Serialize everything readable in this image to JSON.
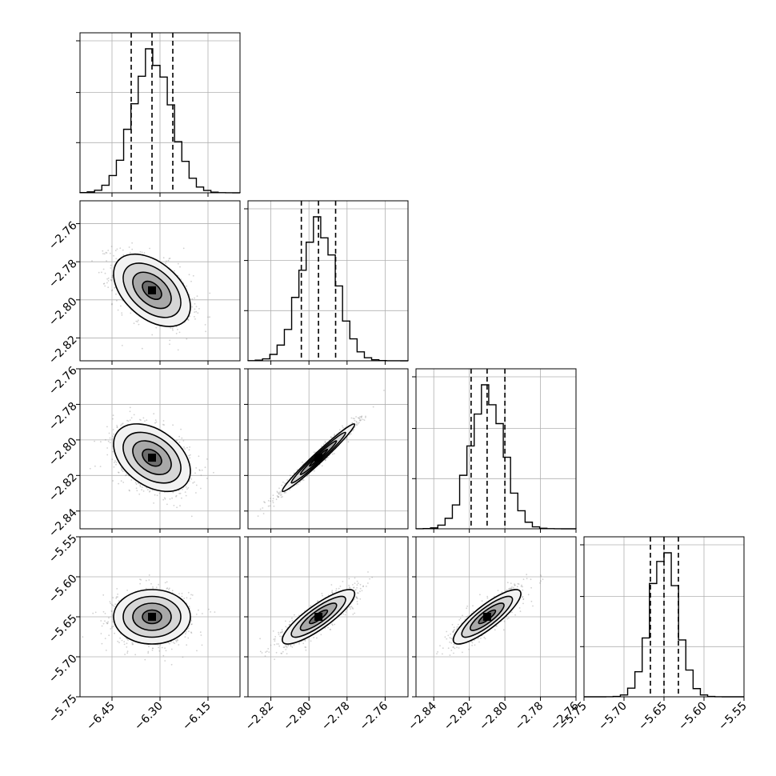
{
  "chart_data": {
    "type": "corner",
    "title": "",
    "grid": true,
    "parameters": [
      {
        "range": [
          -6.55,
          -6.05
        ],
        "ticks": [
          -6.45,
          -6.3,
          -6.15
        ],
        "mean": -6.325,
        "sd": 0.06,
        "quantiles": [
          -6.39,
          -6.325,
          -6.26
        ]
      },
      {
        "range": [
          -2.832,
          -2.748
        ],
        "ticks": [
          -2.82,
          -2.8,
          -2.78,
          -2.76
        ],
        "mean": -2.795,
        "sd": 0.0095,
        "quantiles": [
          -2.804,
          -2.795,
          -2.786
        ]
      },
      {
        "range": [
          -2.85,
          -2.76
        ],
        "ticks": [
          -2.84,
          -2.82,
          -2.8,
          -2.78,
          -2.76
        ],
        "mean": -2.81,
        "sd": 0.0095,
        "quantiles": [
          -2.819,
          -2.81,
          -2.8
        ]
      },
      {
        "range": [
          -5.75,
          -5.55
        ],
        "ticks": [
          -5.75,
          -5.7,
          -5.65,
          -5.6,
          -5.55
        ],
        "mean": -5.65,
        "sd": 0.017,
        "quantiles": [
          -5.667,
          -5.65,
          -5.632
        ]
      }
    ],
    "tick_text": [
      [
        "−6.45",
        "−6.30",
        "−6.15"
      ],
      [
        "−2.82",
        "−2.80",
        "−2.78",
        "−2.76"
      ],
      [
        "−2.84",
        "−2.82",
        "−2.80",
        "−2.78",
        "−2.76"
      ],
      [
        "−5.75",
        "−5.70",
        "−5.65",
        "−5.60",
        "−5.55"
      ]
    ],
    "correlations": {
      "1,0": -0.45,
      "2,0": -0.4,
      "2,1": 0.98,
      "3,0": 0.0,
      "3,1": 0.85,
      "3,2": 0.85
    },
    "contour_levels_sigma": [
      0.5,
      1.0,
      1.5,
      2.0
    ]
  }
}
